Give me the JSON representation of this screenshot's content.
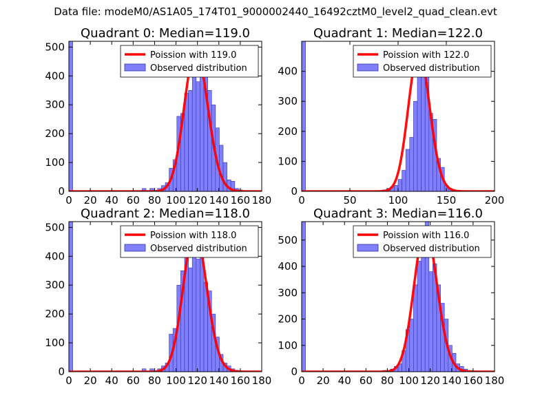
{
  "figure": {
    "title": "Data file: modeM0/AS1A05_174T01_9000002440_16492cztM0_level2_quad_clean.evt"
  },
  "colors": {
    "bar_fill": "#8080ff",
    "bar_edge": "#3333aa",
    "poisson_line": "#ff0000",
    "axes": "#000000",
    "background": "#ffffff"
  },
  "chart_data": [
    {
      "type": "bar",
      "title": "Quadrant 0: Median=119.0",
      "xlim": [
        0,
        180
      ],
      "ylim": [
        0,
        520
      ],
      "xticks": [
        0,
        20,
        40,
        60,
        80,
        100,
        120,
        140,
        160,
        180
      ],
      "yticks": [
        0,
        100,
        200,
        300,
        400,
        500
      ],
      "legend": {
        "placement": "top-right",
        "entries": [
          "Poission with 119.0",
          "Observed distribution"
        ]
      },
      "poisson_mean": 119.0,
      "poisson_peak": 490,
      "bin_width": 3.6,
      "bins": [
        {
          "x": 0,
          "y": 520
        },
        {
          "x": 68.4,
          "y": 10
        },
        {
          "x": 75.6,
          "y": 10
        },
        {
          "x": 82.8,
          "y": 10
        },
        {
          "x": 86.4,
          "y": 20
        },
        {
          "x": 90,
          "y": 30
        },
        {
          "x": 93.6,
          "y": 80
        },
        {
          "x": 97.2,
          "y": 110
        },
        {
          "x": 100.8,
          "y": 260
        },
        {
          "x": 104.4,
          "y": 270
        },
        {
          "x": 108,
          "y": 340
        },
        {
          "x": 111.6,
          "y": 350
        },
        {
          "x": 115.2,
          "y": 440
        },
        {
          "x": 118.8,
          "y": 380
        },
        {
          "x": 122.4,
          "y": 500
        },
        {
          "x": 126,
          "y": 400
        },
        {
          "x": 129.6,
          "y": 350
        },
        {
          "x": 133.2,
          "y": 300
        },
        {
          "x": 136.8,
          "y": 220
        },
        {
          "x": 140.4,
          "y": 160
        },
        {
          "x": 144,
          "y": 100
        },
        {
          "x": 147.6,
          "y": 40
        },
        {
          "x": 151.2,
          "y": 35
        },
        {
          "x": 154.8,
          "y": 10
        },
        {
          "x": 158.4,
          "y": 5
        }
      ]
    },
    {
      "type": "bar",
      "title": "Quadrant 1: Median=122.0",
      "xlim": [
        0,
        200
      ],
      "ylim": [
        0,
        500
      ],
      "xticks": [
        0,
        50,
        100,
        150,
        200
      ],
      "yticks": [
        0,
        100,
        200,
        300,
        400
      ],
      "legend": {
        "placement": "top-right",
        "entries": [
          "Poission with 122.0",
          "Observed distribution"
        ]
      },
      "poisson_mean": 122.0,
      "poisson_peak": 465,
      "bin_width": 4,
      "bins": [
        {
          "x": 0,
          "y": 500
        },
        {
          "x": 84,
          "y": 5
        },
        {
          "x": 88,
          "y": 10
        },
        {
          "x": 92,
          "y": 15
        },
        {
          "x": 96,
          "y": 20
        },
        {
          "x": 100,
          "y": 40
        },
        {
          "x": 104,
          "y": 70
        },
        {
          "x": 108,
          "y": 140
        },
        {
          "x": 112,
          "y": 180
        },
        {
          "x": 116,
          "y": 300
        },
        {
          "x": 120,
          "y": 420
        },
        {
          "x": 124,
          "y": 470
        },
        {
          "x": 128,
          "y": 400
        },
        {
          "x": 132,
          "y": 260
        },
        {
          "x": 136,
          "y": 240
        },
        {
          "x": 140,
          "y": 110
        },
        {
          "x": 144,
          "y": 80
        },
        {
          "x": 148,
          "y": 20
        },
        {
          "x": 152,
          "y": 10
        },
        {
          "x": 156,
          "y": 5
        }
      ]
    },
    {
      "type": "bar",
      "title": "Quadrant 2: Median=118.0",
      "xlim": [
        0,
        180
      ],
      "ylim": [
        0,
        520
      ],
      "xticks": [
        0,
        20,
        40,
        60,
        80,
        100,
        120,
        140,
        160,
        180
      ],
      "yticks": [
        0,
        100,
        200,
        300,
        400,
        500
      ],
      "legend": {
        "placement": "top-right",
        "entries": [
          "Poission with 118.0",
          "Observed distribution"
        ]
      },
      "poisson_mean": 118.0,
      "poisson_peak": 490,
      "bin_width": 3.6,
      "bins": [
        {
          "x": 0,
          "y": 520
        },
        {
          "x": 68.4,
          "y": 10
        },
        {
          "x": 75.6,
          "y": 10
        },
        {
          "x": 82.8,
          "y": 10
        },
        {
          "x": 86.4,
          "y": 20
        },
        {
          "x": 90,
          "y": 30
        },
        {
          "x": 93.6,
          "y": 130
        },
        {
          "x": 97.2,
          "y": 150
        },
        {
          "x": 100.8,
          "y": 300
        },
        {
          "x": 104.4,
          "y": 350
        },
        {
          "x": 108,
          "y": 420
        },
        {
          "x": 111.6,
          "y": 360
        },
        {
          "x": 115.2,
          "y": 440
        },
        {
          "x": 118.8,
          "y": 390
        },
        {
          "x": 122.4,
          "y": 480
        },
        {
          "x": 126,
          "y": 310
        },
        {
          "x": 129.6,
          "y": 280
        },
        {
          "x": 133.2,
          "y": 200
        },
        {
          "x": 136.8,
          "y": 120
        },
        {
          "x": 140.4,
          "y": 60
        },
        {
          "x": 144,
          "y": 30
        },
        {
          "x": 147.6,
          "y": 20
        },
        {
          "x": 151.2,
          "y": 10
        },
        {
          "x": 154.8,
          "y": 5
        }
      ]
    },
    {
      "type": "bar",
      "title": "Quadrant 3: Median=116.0",
      "xlim": [
        0,
        180
      ],
      "ylim": [
        0,
        570
      ],
      "xticks": [
        0,
        20,
        40,
        60,
        80,
        100,
        120,
        140,
        160,
        180
      ],
      "yticks": [
        0,
        100,
        200,
        300,
        400,
        500
      ],
      "legend": {
        "placement": "top-right",
        "entries": [
          "Poission with 116.0",
          "Observed distribution"
        ]
      },
      "poisson_mean": 116.0,
      "poisson_peak": 540,
      "bin_width": 3.6,
      "bins": [
        {
          "x": 0,
          "y": 570
        },
        {
          "x": 75.6,
          "y": 5
        },
        {
          "x": 82.8,
          "y": 10
        },
        {
          "x": 86.4,
          "y": 20
        },
        {
          "x": 90,
          "y": 30
        },
        {
          "x": 93.6,
          "y": 80
        },
        {
          "x": 97.2,
          "y": 160
        },
        {
          "x": 100.8,
          "y": 200
        },
        {
          "x": 104.4,
          "y": 330
        },
        {
          "x": 108,
          "y": 420
        },
        {
          "x": 111.6,
          "y": 440
        },
        {
          "x": 115.2,
          "y": 570
        },
        {
          "x": 118.8,
          "y": 380
        },
        {
          "x": 122.4,
          "y": 410
        },
        {
          "x": 126,
          "y": 330
        },
        {
          "x": 129.6,
          "y": 260
        },
        {
          "x": 133.2,
          "y": 200
        },
        {
          "x": 136.8,
          "y": 100
        },
        {
          "x": 140.4,
          "y": 70
        },
        {
          "x": 144,
          "y": 30
        },
        {
          "x": 147.6,
          "y": 20
        },
        {
          "x": 151.2,
          "y": 10
        },
        {
          "x": 154.8,
          "y": 5
        }
      ]
    }
  ]
}
